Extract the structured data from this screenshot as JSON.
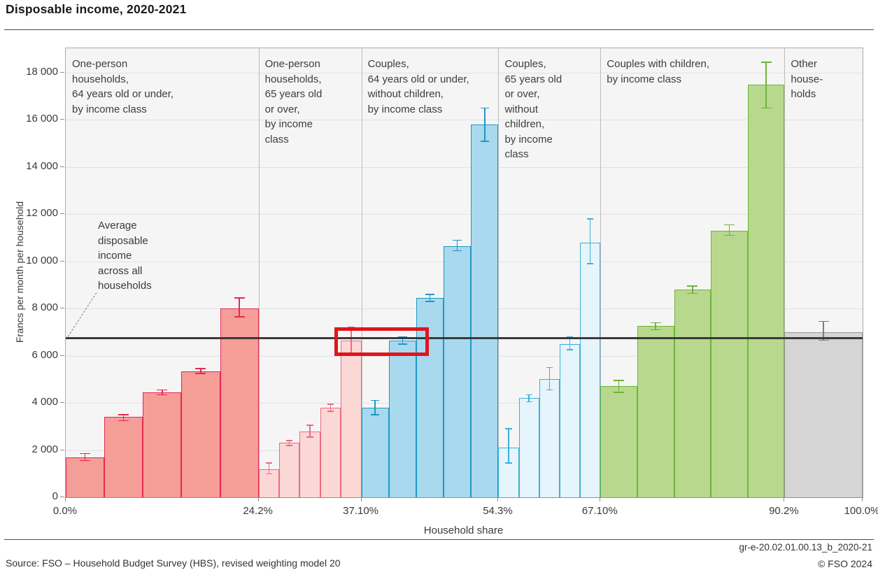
{
  "header": {
    "title": "Disposable income, 2020-2021"
  },
  "footer": {
    "source": "Source: FSO – Household Budget Survey (HBS), revised weighting model 20",
    "figure_id": "gr-e-20.02.01.00.13_b_2020-21",
    "copyright": "© FSO 2024"
  },
  "annotation": {
    "average_label_lines": [
      "Average",
      "disposable",
      "income",
      "across all",
      "households"
    ]
  },
  "highlight_box": {
    "color": "#e1141e",
    "x_pct_range": [
      33.7,
      45.6
    ],
    "value_range": [
      5990,
      7210
    ]
  },
  "chart_data": {
    "type": "bar",
    "title": "Disposable income, 2020-2021",
    "xlabel": "Household share",
    "ylabel": "Francs per month per household",
    "ylim": [
      0,
      19000
    ],
    "grid": true,
    "y_ticks": [
      {
        "value": 0,
        "label": "0"
      },
      {
        "value": 2000,
        "label": "2 000"
      },
      {
        "value": 4000,
        "label": "4 000"
      },
      {
        "value": 6000,
        "label": "6 000"
      },
      {
        "value": 8000,
        "label": "8 000"
      },
      {
        "value": 10000,
        "label": "10 000"
      },
      {
        "value": 12000,
        "label": "12 000"
      },
      {
        "value": 14000,
        "label": "14 000"
      },
      {
        "value": 16000,
        "label": "16 000"
      },
      {
        "value": 18000,
        "label": "18 000"
      }
    ],
    "x_ticks": [
      {
        "pct": 0.0,
        "label": "0.0%"
      },
      {
        "pct": 24.2,
        "label": "24.2%"
      },
      {
        "pct": 37.1,
        "label": "37.10%"
      },
      {
        "pct": 54.3,
        "label": "54.3%"
      },
      {
        "pct": 67.1,
        "label": "67.10%"
      },
      {
        "pct": 90.2,
        "label": "90.2%"
      },
      {
        "pct": 100.0,
        "label": "100.0%"
      }
    ],
    "average_line_value": 6750,
    "groups": [
      {
        "label_lines": [
          "One-person",
          "households,",
          "64 years old or under,",
          "by income class"
        ],
        "range_pct": [
          0.0,
          24.2
        ],
        "fill": "#f59d97",
        "stroke": "#e42a50",
        "values": [
          1700,
          3400,
          4450,
          5350,
          8000
        ],
        "errors_low": [
          1550,
          3250,
          4350,
          5250,
          7650
        ],
        "errors_high": [
          1850,
          3500,
          4550,
          5450,
          8450
        ]
      },
      {
        "label_lines": [
          "One-person",
          "households,",
          "65 years old",
          "or over,",
          "by income",
          "class"
        ],
        "range_pct": [
          24.2,
          37.1
        ],
        "fill": "#fbd8d6",
        "stroke": "#ec6b80",
        "values": [
          1200,
          2300,
          2800,
          3800,
          6650
        ],
        "errors_low": [
          1000,
          2200,
          2550,
          3650,
          6100
        ],
        "errors_high": [
          1450,
          2400,
          3050,
          3950,
          7200
        ]
      },
      {
        "label_lines": [
          "Couples,",
          "64 years old or under,",
          "without children,",
          "by income class"
        ],
        "range_pct": [
          37.1,
          54.3
        ],
        "fill": "#a9d9ee",
        "stroke": "#1f96c3",
        "values": [
          3800,
          6650,
          8450,
          10650,
          15800
        ],
        "errors_low": [
          3500,
          6500,
          8300,
          10450,
          15100
        ],
        "errors_high": [
          4100,
          6800,
          8600,
          10900,
          16500
        ]
      },
      {
        "label_lines": [
          "Couples,",
          "65 years old",
          "or over,",
          "without",
          "children,",
          "by income",
          "class"
        ],
        "range_pct": [
          54.3,
          67.1
        ],
        "fill": "#e6f4fb",
        "stroke": "#3bb1dc",
        "values": [
          2100,
          4200,
          5000,
          6500,
          10800
        ],
        "errors_low": [
          1450,
          4050,
          4550,
          6250,
          9900
        ],
        "errors_high": [
          2900,
          4350,
          5500,
          6800,
          11800
        ]
      },
      {
        "label_lines": [
          "Couples with children,",
          "by income class"
        ],
        "range_pct": [
          67.1,
          90.2
        ],
        "fill": "#b8d98d",
        "stroke": "#6fb33c",
        "values": [
          4700,
          7250,
          8800,
          11300,
          17500
        ],
        "errors_low": [
          4450,
          7100,
          8650,
          11100,
          16500
        ],
        "errors_high": [
          4950,
          7400,
          8950,
          11550,
          18450
        ]
      },
      {
        "label_lines": [
          "Other",
          "house-",
          "holds"
        ],
        "range_pct": [
          90.2,
          100.0
        ],
        "fill": "#d5d5d5",
        "stroke": "#979797",
        "error_color": "#7c7c7c",
        "values": [
          7000
        ],
        "errors_low": [
          6650
        ],
        "errors_high": [
          7450
        ]
      }
    ]
  }
}
